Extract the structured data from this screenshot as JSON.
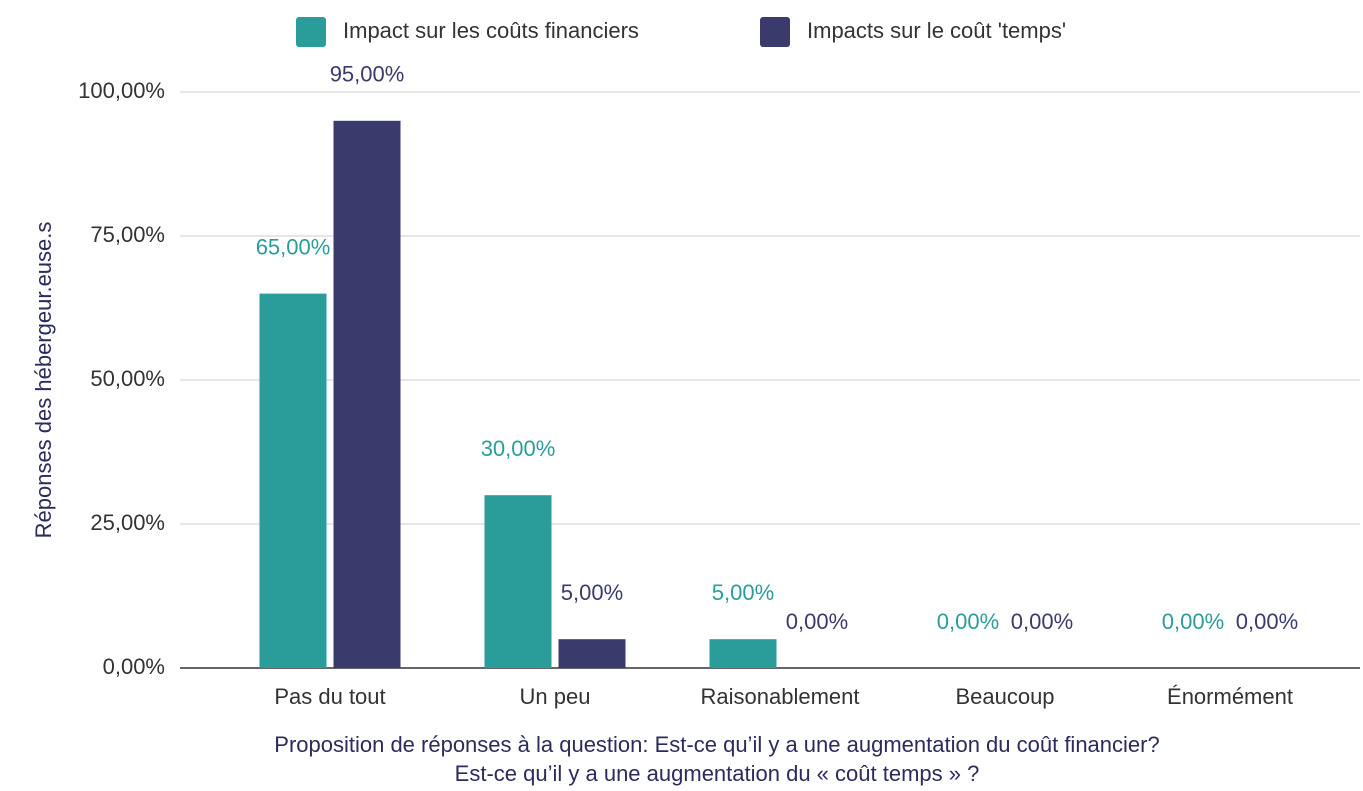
{
  "chart_data": {
    "type": "bar",
    "categories": [
      "Pas du tout",
      "Un peu",
      "Raisonablement",
      "Beaucoup",
      "Énormément"
    ],
    "series": [
      {
        "name": "Impact sur les coûts financiers",
        "color": "#2a9d9a",
        "values": [
          65,
          30,
          5,
          0,
          0
        ],
        "value_labels": [
          "65,00%",
          "30,00%",
          "5,00%",
          "0,00%",
          "0,00%"
        ]
      },
      {
        "name": "Impacts sur le coût 'temps'",
        "color": "#3b3a6c",
        "values": [
          95,
          5,
          0,
          0,
          0
        ],
        "value_labels": [
          "95,00%",
          "5,00%",
          "0,00%",
          "0,00%",
          "0,00%"
        ]
      }
    ],
    "ylabel": "Réponses des hébergeur.euse.s",
    "xlabel": [
      "Proposition de réponses à la question: Est-ce qu’il y a une augmentation du coût financier?",
      "Est-ce qu’il y a une augmentation du « coût temps » ?"
    ],
    "ylim": [
      0,
      100
    ],
    "yticks": [
      {
        "value": 0,
        "label": "0,00%"
      },
      {
        "value": 25,
        "label": "25,00%"
      },
      {
        "value": 50,
        "label": "50,00%"
      },
      {
        "value": 75,
        "label": "75,00%"
      },
      {
        "value": 100,
        "label": "100,00%"
      }
    ],
    "grid": true,
    "legend": "top"
  }
}
